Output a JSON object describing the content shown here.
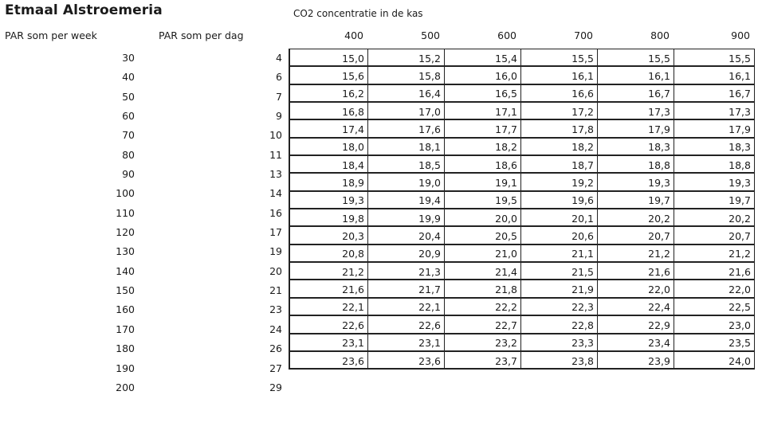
{
  "title": "Etmaal Alstroemeria",
  "subtitle": "CO2 concentratie in de kas",
  "col_week_header": "PAR som per week",
  "col_dag_header": "PAR som per dag",
  "co2_levels": [
    "400",
    "500",
    "600",
    "700",
    "800",
    "900"
  ],
  "rows": [
    {
      "week": "30",
      "dag": "4",
      "values": [
        "15,0",
        "15,2",
        "15,4",
        "15,5",
        "15,5",
        "15,5"
      ]
    },
    {
      "week": "40",
      "dag": "6",
      "values": [
        "15,6",
        "15,8",
        "16,0",
        "16,1",
        "16,1",
        "16,1"
      ]
    },
    {
      "week": "50",
      "dag": "7",
      "values": [
        "16,2",
        "16,4",
        "16,5",
        "16,6",
        "16,7",
        "16,7"
      ]
    },
    {
      "week": "60",
      "dag": "9",
      "values": [
        "16,8",
        "17,0",
        "17,1",
        "17,2",
        "17,3",
        "17,3"
      ]
    },
    {
      "week": "70",
      "dag": "10",
      "values": [
        "17,4",
        "17,6",
        "17,7",
        "17,8",
        "17,9",
        "17,9"
      ]
    },
    {
      "week": "80",
      "dag": "11",
      "values": [
        "18,0",
        "18,1",
        "18,2",
        "18,2",
        "18,3",
        "18,3"
      ]
    },
    {
      "week": "90",
      "dag": "13",
      "values": [
        "18,4",
        "18,5",
        "18,6",
        "18,7",
        "18,8",
        "18,8"
      ]
    },
    {
      "week": "100",
      "dag": "14",
      "values": [
        "18,9",
        "19,0",
        "19,1",
        "19,2",
        "19,3",
        "19,3"
      ]
    },
    {
      "week": "110",
      "dag": "16",
      "values": [
        "19,3",
        "19,4",
        "19,5",
        "19,6",
        "19,7",
        "19,7"
      ]
    },
    {
      "week": "120",
      "dag": "17",
      "values": [
        "19,8",
        "19,9",
        "20,0",
        "20,1",
        "20,2",
        "20,2"
      ]
    },
    {
      "week": "130",
      "dag": "19",
      "values": [
        "20,3",
        "20,4",
        "20,5",
        "20,6",
        "20,7",
        "20,7"
      ]
    },
    {
      "week": "140",
      "dag": "20",
      "values": [
        "20,8",
        "20,9",
        "21,0",
        "21,1",
        "21,2",
        "21,2"
      ]
    },
    {
      "week": "150",
      "dag": "21",
      "values": [
        "21,2",
        "21,3",
        "21,4",
        "21,5",
        "21,6",
        "21,6"
      ]
    },
    {
      "week": "160",
      "dag": "23",
      "values": [
        "21,6",
        "21,7",
        "21,8",
        "21,9",
        "22,0",
        "22,0"
      ]
    },
    {
      "week": "170",
      "dag": "24",
      "values": [
        "22,1",
        "22,1",
        "22,2",
        "22,3",
        "22,4",
        "22,5"
      ]
    },
    {
      "week": "180",
      "dag": "26",
      "values": [
        "22,6",
        "22,6",
        "22,7",
        "22,8",
        "22,9",
        "23,0"
      ]
    },
    {
      "week": "190",
      "dag": "27",
      "values": [
        "23,1",
        "23,1",
        "23,2",
        "23,3",
        "23,4",
        "23,5"
      ]
    },
    {
      "week": "200",
      "dag": "29",
      "values": [
        "23,6",
        "23,6",
        "23,7",
        "23,8",
        "23,9",
        "24,0"
      ]
    }
  ]
}
